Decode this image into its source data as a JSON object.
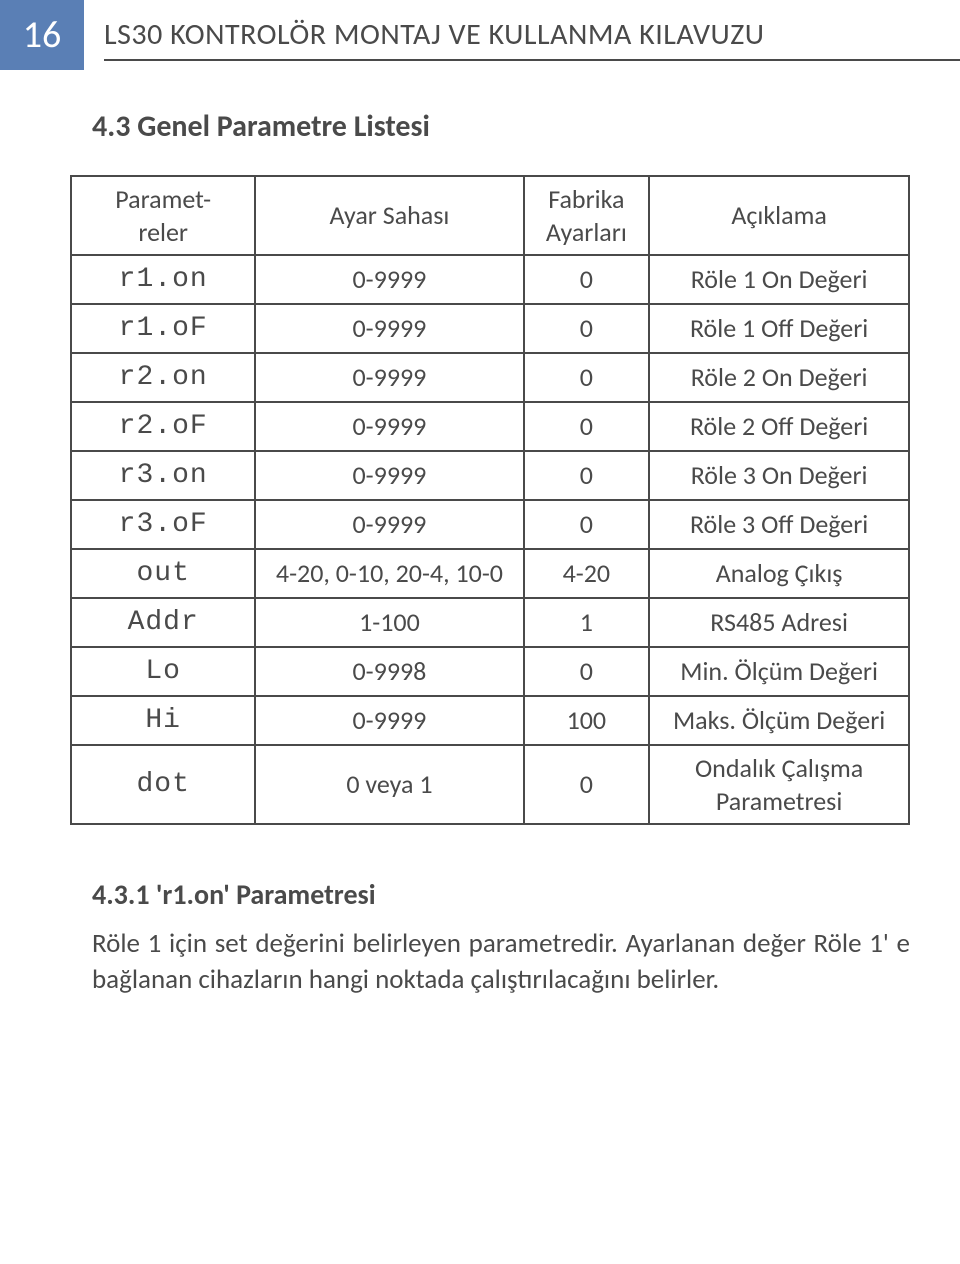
{
  "header": {
    "page_number": "16",
    "title": "LS30 KONTROLÖR MONTAJ VE KULLANMA KILAVUZU"
  },
  "section": {
    "title": "4.3 Genel Parametre Listesi"
  },
  "table": {
    "headers": {
      "param": "Paramet-\nreler",
      "range": "Ayar Sahası",
      "factory": "Fabrika Ayarları",
      "desc": "Açıklama"
    },
    "rows": [
      {
        "param": "r1.on",
        "range": "0-9999",
        "factory": "0",
        "desc": "Röle 1 On Değeri"
      },
      {
        "param": "r1.oF",
        "range": "0-9999",
        "factory": "0",
        "desc": "Röle 1 Off Değeri"
      },
      {
        "param": "r2.on",
        "range": "0-9999",
        "factory": "0",
        "desc": "Röle 2 On Değeri"
      },
      {
        "param": "r2.oF",
        "range": "0-9999",
        "factory": "0",
        "desc": "Röle 2 Off Değeri"
      },
      {
        "param": "r3.on",
        "range": "0-9999",
        "factory": "0",
        "desc": "Röle 3 On Değeri"
      },
      {
        "param": "r3.oF",
        "range": "0-9999",
        "factory": "0",
        "desc": "Röle 3 Off Değeri"
      },
      {
        "param": "out",
        "range": "4-20, 0-10, 20-4, 10-0",
        "factory": "4-20",
        "desc": "Analog Çıkış"
      },
      {
        "param": "Addr",
        "range": "1-100",
        "factory": "1",
        "desc": "RS485 Adresi"
      },
      {
        "param": "Lo",
        "range": "0-9998",
        "factory": "0",
        "desc": "Min. Ölçüm Değeri"
      },
      {
        "param": "Hi",
        "range": "0-9999",
        "factory": "100",
        "desc": "Maks. Ölçüm Değeri"
      },
      {
        "param": "dot",
        "range": "0 veya 1",
        "factory": "0",
        "desc": "Ondalık Çalışma Parametresi"
      }
    ]
  },
  "subsection": {
    "title": "4.3.1 'r1.on' Parametresi",
    "body": "Röle 1 için set değerini belirleyen parametredir. Ayarlanan değer Röle 1' e bağlanan cihazların hangi noktada çalıştırılacağını belirler."
  }
}
